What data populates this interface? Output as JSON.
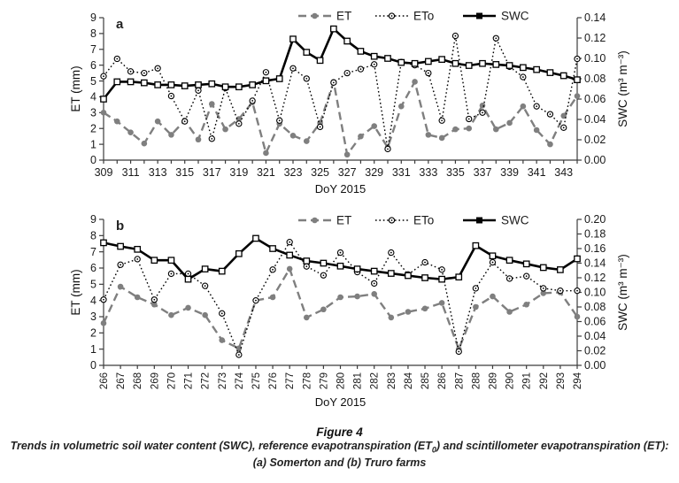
{
  "caption": {
    "title": "Figure 4",
    "line1_pre": "Trends in volumetric soil water content (SWC), reference evapotranspiration (ET",
    "line1_sub": "0",
    "line1_post": ") and scintillometer evapotranspiration (ET):",
    "line2": "(a) Somerton and (b) Truro farms"
  },
  "chart_data": [
    {
      "type": "line",
      "panel_label": "a",
      "xlabel": "DoY 2015",
      "ylabel_left": "ET (mm)",
      "ylabel_right": "SWC (m³ m⁻³)",
      "ylim_left": [
        0,
        9
      ],
      "ylim_right": [
        0,
        0.14
      ],
      "right_tick_step": 0.02,
      "x_labeled_every": 2,
      "x_label_rotation": 0,
      "grid": false,
      "legend_position": "top",
      "legend": [
        "ET",
        "ETo",
        "SWC"
      ],
      "x": [
        309,
        310,
        311,
        312,
        313,
        314,
        315,
        316,
        317,
        318,
        319,
        320,
        321,
        322,
        323,
        324,
        325,
        326,
        327,
        328,
        329,
        330,
        331,
        332,
        333,
        334,
        335,
        336,
        337,
        338,
        339,
        340,
        341,
        342,
        343,
        344
      ],
      "series": [
        {
          "name": "ET",
          "axis": "left",
          "color": "#7f7f7f",
          "line": "dashed",
          "marker": "filled-circle",
          "values": [
            3.0,
            2.45,
            1.75,
            1.05,
            2.45,
            1.6,
            2.5,
            1.3,
            3.55,
            1.95,
            2.6,
            3.65,
            0.45,
            2.3,
            1.55,
            1.2,
            2.35,
            4.95,
            0.35,
            1.5,
            2.15,
            0.8,
            3.4,
            4.95,
            1.6,
            1.4,
            1.95,
            2.0,
            3.45,
            1.95,
            2.35,
            3.4,
            1.9,
            1.0,
            2.8,
            4.05
          ]
        },
        {
          "name": "ETo",
          "axis": "left",
          "color": "#000000",
          "line": "dotted",
          "marker": "open-dot-circle",
          "values": [
            5.3,
            6.4,
            5.6,
            5.5,
            5.8,
            4.05,
            2.45,
            4.4,
            1.35,
            4.55,
            2.3,
            3.75,
            5.55,
            2.5,
            5.8,
            5.15,
            2.1,
            4.9,
            5.5,
            5.75,
            6.05,
            0.7,
            6.2,
            6.0,
            5.5,
            2.5,
            7.85,
            2.6,
            3.0,
            7.7,
            5.9,
            5.25,
            3.4,
            2.9,
            2.05,
            6.4
          ]
        },
        {
          "name": "SWC",
          "axis": "right",
          "color": "#000000",
          "line": "solid",
          "marker": "open-square",
          "values": [
            0.06,
            0.077,
            0.077,
            0.076,
            0.074,
            0.074,
            0.073,
            0.074,
            0.075,
            0.072,
            0.072,
            0.074,
            0.078,
            0.08,
            0.119,
            0.106,
            0.098,
            0.129,
            0.117,
            0.107,
            0.102,
            0.1,
            0.096,
            0.095,
            0.097,
            0.099,
            0.095,
            0.093,
            0.095,
            0.094,
            0.093,
            0.091,
            0.089,
            0.086,
            0.083,
            0.079
          ]
        }
      ]
    },
    {
      "type": "line",
      "panel_label": "b",
      "xlabel": "DoY 2015",
      "ylabel_left": "ET (mm)",
      "ylabel_right": "SWC (m³ m⁻³)",
      "ylim_left": [
        0,
        9
      ],
      "ylim_right": [
        0,
        0.2
      ],
      "right_tick_step": 0.02,
      "x_labeled_every": 1,
      "x_label_rotation": -90,
      "grid": false,
      "legend_position": "top",
      "legend": [
        "ET",
        "ETo",
        "SWC"
      ],
      "x": [
        266,
        267,
        268,
        269,
        270,
        271,
        272,
        273,
        274,
        275,
        276,
        277,
        278,
        279,
        280,
        281,
        282,
        283,
        284,
        285,
        286,
        287,
        288,
        289,
        290,
        291,
        292,
        293,
        294
      ],
      "series": [
        {
          "name": "ET",
          "axis": "left",
          "color": "#7f7f7f",
          "line": "dashed",
          "marker": "filled-circle",
          "values": [
            2.6,
            4.85,
            4.2,
            3.75,
            3.1,
            3.55,
            3.1,
            1.55,
            1.05,
            4.0,
            4.2,
            5.95,
            2.95,
            3.45,
            4.2,
            4.25,
            4.4,
            2.95,
            3.3,
            3.5,
            3.85,
            1.0,
            3.6,
            4.25,
            3.3,
            3.75,
            4.45,
            4.5,
            3.0
          ]
        },
        {
          "name": "ETo",
          "axis": "left",
          "color": "#000000",
          "line": "dotted",
          "marker": "open-dot-circle",
          "values": [
            4.05,
            6.2,
            6.55,
            4.05,
            5.65,
            5.65,
            4.9,
            3.2,
            0.65,
            4.0,
            5.9,
            7.6,
            6.1,
            5.55,
            6.95,
            5.75,
            5.05,
            6.95,
            5.6,
            6.35,
            5.9,
            0.85,
            4.75,
            6.35,
            5.35,
            5.5,
            4.75,
            4.6,
            4.6
          ]
        },
        {
          "name": "SWC",
          "axis": "right",
          "color": "#000000",
          "line": "solid",
          "marker": "open-square",
          "values": [
            0.168,
            0.163,
            0.159,
            0.144,
            0.144,
            0.118,
            0.132,
            0.129,
            0.153,
            0.174,
            0.16,
            0.151,
            0.143,
            0.14,
            0.136,
            0.132,
            0.129,
            0.126,
            0.123,
            0.12,
            0.118,
            0.121,
            0.164,
            0.15,
            0.144,
            0.139,
            0.134,
            0.131,
            0.146
          ]
        }
      ]
    }
  ]
}
